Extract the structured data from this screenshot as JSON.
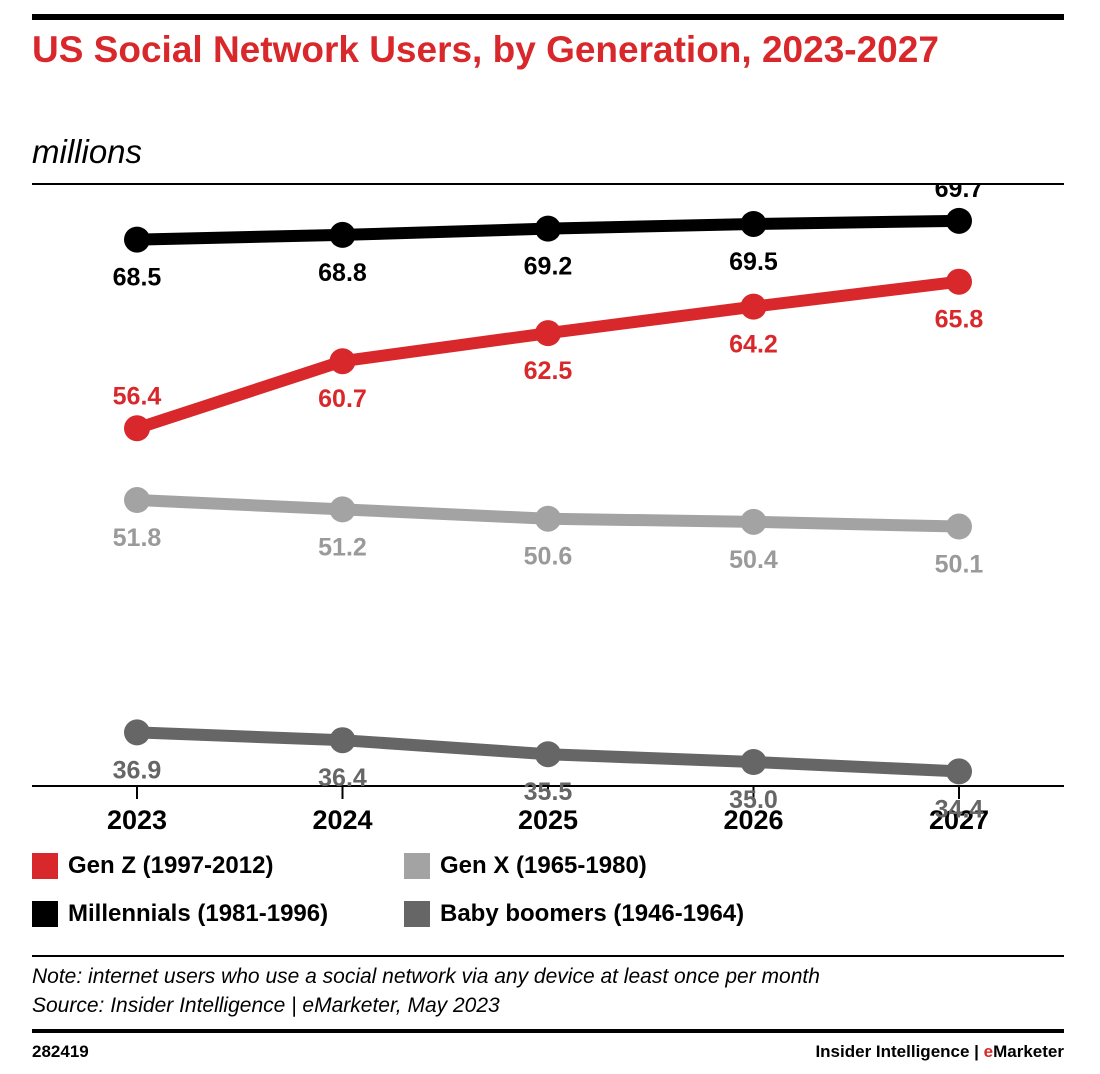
{
  "header": {
    "title": "US Social Network Users, by Generation, 2023-2027",
    "subtitle": "millions"
  },
  "chart_data": {
    "type": "line",
    "x": [
      "2023",
      "2024",
      "2025",
      "2026",
      "2027"
    ],
    "ylim": [
      30,
      72
    ],
    "grid": false,
    "legend_position": "bottom",
    "series": [
      {
        "name": "Millennials (1981-1996)",
        "color": "#000000",
        "label_color": "#000000",
        "values": [
          68.5,
          68.8,
          69.2,
          69.5,
          69.7
        ],
        "labels": [
          "68.5",
          "68.8",
          "69.2",
          "69.5",
          "69.7"
        ],
        "label_pos": [
          "below",
          "below",
          "below",
          "below",
          "above"
        ]
      },
      {
        "name": "Gen Z (1997-2012)",
        "color": "#d9282b",
        "label_color": "#d9282b",
        "values": [
          56.4,
          60.7,
          62.5,
          64.2,
          65.8
        ],
        "labels": [
          "56.4",
          "60.7",
          "62.5",
          "64.2",
          "65.8"
        ],
        "label_pos": [
          "above",
          "below",
          "below",
          "below",
          "below"
        ]
      },
      {
        "name": "Gen X (1965-1980)",
        "color": "#a3a3a3",
        "label_color": "#9a9a9a",
        "values": [
          51.8,
          51.2,
          50.6,
          50.4,
          50.1
        ],
        "labels": [
          "51.8",
          "51.2",
          "50.6",
          "50.4",
          "50.1"
        ],
        "label_pos": [
          "below",
          "below",
          "below",
          "below",
          "below"
        ]
      },
      {
        "name": "Baby boomers (1946-1964)",
        "color": "#666666",
        "label_color": "#666666",
        "values": [
          36.9,
          36.4,
          35.5,
          35.0,
          34.4
        ],
        "labels": [
          "36.9",
          "36.4",
          "35.5",
          "35.0",
          "34.4"
        ],
        "label_pos": [
          "below",
          "below",
          "below",
          "below",
          "below"
        ]
      }
    ]
  },
  "legend": {
    "items": [
      {
        "label": "Gen Z (1997-2012)",
        "color": "#d9282b"
      },
      {
        "label": "Gen X (1965-1980)",
        "color": "#a3a3a3"
      },
      {
        "label": "Millennials (1981-1996)",
        "color": "#000000"
      },
      {
        "label": "Baby boomers (1946-1964)",
        "color": "#666666"
      }
    ]
  },
  "footer": {
    "note": "Note: internet users who use a social network via any device at least once per month",
    "source": "Source: Insider Intelligence | eMarketer, May 2023",
    "chart_id": "282419",
    "brand_prefix": "Insider Intelligence | ",
    "brand_accent": "e",
    "brand_suffix": "Marketer"
  }
}
